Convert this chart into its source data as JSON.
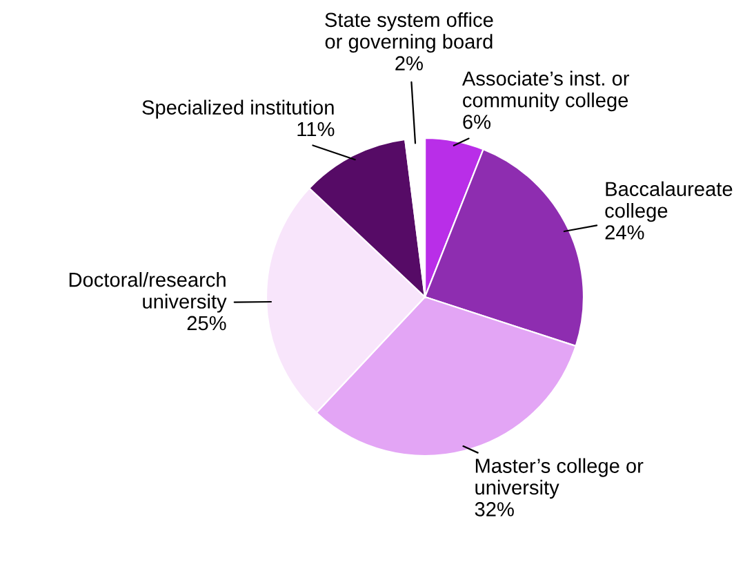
{
  "chart_data": {
    "type": "pie",
    "categories": [
      "Associate’s inst. or\ncommunity college",
      "Baccalaureate\ncollege",
      "Master’s college or\nuniversity",
      "Doctoral/research\nuniversity",
      "Specialized institution",
      "State system office\nor governing board"
    ],
    "values": [
      6,
      24,
      32,
      25,
      11,
      2
    ],
    "colors": [
      "#b92ee8",
      "#8e2db0",
      "#e3a5f5",
      "#f8e5fb",
      "#560b66",
      "#ffffff"
    ],
    "value_labels": [
      "6%",
      "24%",
      "32%",
      "25%",
      "11%",
      "2%"
    ]
  }
}
